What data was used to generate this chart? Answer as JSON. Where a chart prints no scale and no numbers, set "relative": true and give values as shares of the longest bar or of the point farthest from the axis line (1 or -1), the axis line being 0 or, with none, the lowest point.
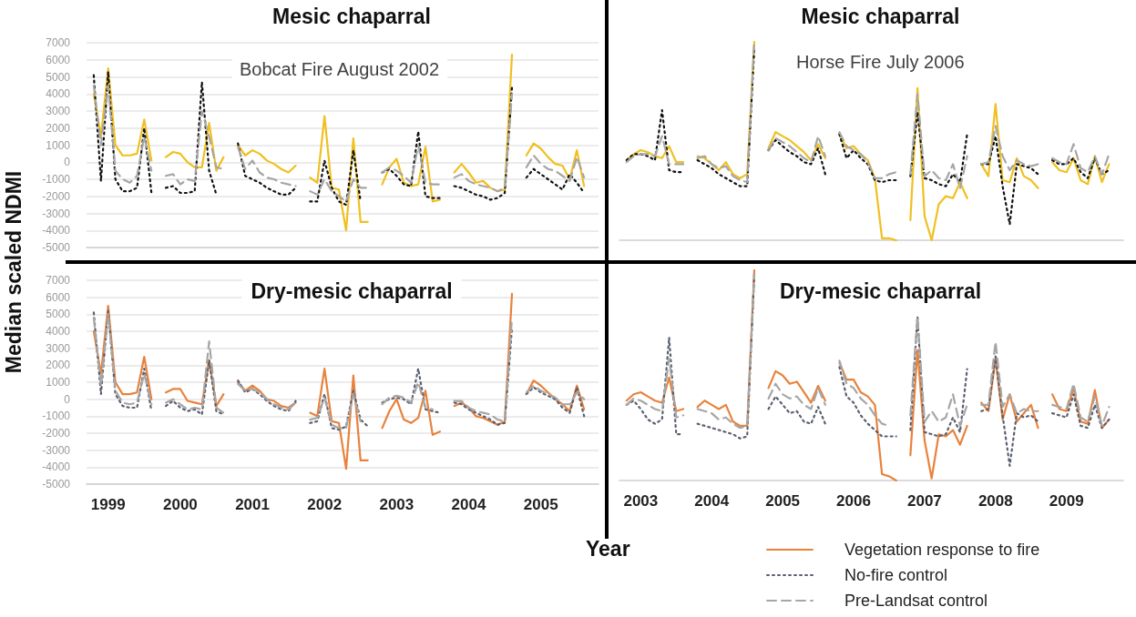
{
  "chart_data": [
    {
      "type": "line",
      "title": "Mesic chaparral",
      "annotations": [
        "Bobcat Fire August 2002"
      ],
      "xlim": [
        1998.7,
        2005.8
      ],
      "xticks": [
        1999,
        2000,
        2001,
        2002,
        2003,
        2004,
        2005
      ],
      "ylim": [
        -5000,
        7000
      ],
      "yticks": [
        -5000,
        -4000,
        -3000,
        -2000,
        -1000,
        0,
        1000,
        2000,
        3000,
        4000,
        5000,
        6000,
        7000
      ],
      "grid": "y",
      "tick_labels": "y",
      "marker": "none",
      "x": [
        1998.8,
        1998.9,
        1999,
        1999.1,
        1999.2,
        1999.3,
        1999.4,
        1999.5,
        1999.6,
        1999.7,
        1999.8,
        1999.9,
        2000,
        2000.1,
        2000.2,
        2000.3,
        2000.4,
        2000.5,
        2000.6,
        2000.7,
        2000.8,
        2000.9,
        2001,
        2001.1,
        2001.2,
        2001.3,
        2001.4,
        2001.5,
        2001.6,
        2001.7,
        2001.8,
        2001.9,
        2002,
        2002.1,
        2002.2,
        2002.3,
        2002.4,
        2002.5,
        2002.6,
        2002.7,
        2002.8,
        2002.9,
        2003,
        2003.1,
        2003.2,
        2003.3,
        2003.4,
        2003.5,
        2003.6,
        2003.7,
        2003.8,
        2003.9,
        2004,
        2004.1,
        2004.2,
        2004.3,
        2004.4,
        2004.5,
        2004.6,
        2004.7,
        2004.8,
        2004.9,
        2005,
        2005.1,
        2005.2,
        2005.3,
        2005.4,
        2005.5,
        2005.6
      ],
      "series": [
        {
          "color": "#f0c020",
          "line_style": "solid",
          "values": [
            4000,
            1500,
            5500,
            1000,
            400,
            400,
            500,
            2500,
            100,
            null,
            300,
            600,
            500,
            0,
            -300,
            -300,
            2300,
            -500,
            300,
            null,
            1000,
            400,
            700,
            500,
            100,
            -100,
            -400,
            -600,
            -200,
            null,
            -900,
            -1200,
            2700,
            -1500,
            -1600,
            -4000,
            1400,
            -3500,
            -3500,
            null,
            -1300,
            -300,
            200,
            -1200,
            -1400,
            -1300,
            900,
            -2300,
            -2200,
            null,
            -600,
            -100,
            -600,
            -1200,
            -1100,
            -1500,
            -1700,
            -1600,
            6300,
            null,
            400,
            1100,
            800,
            300,
            -100,
            -200,
            -1000,
            700,
            -1400
          ]
        },
        {
          "color": "#111111",
          "line_style": "dotted",
          "values": [
            5100,
            -1100,
            5300,
            -1000,
            -1700,
            -1700,
            -1500,
            2000,
            -1800,
            null,
            -1500,
            -1400,
            -1800,
            -1800,
            -1700,
            4700,
            -500,
            -1900,
            null,
            null,
            1100,
            -800,
            -1000,
            -1200,
            -1500,
            -1700,
            -1900,
            -1900,
            -1500,
            null,
            -2300,
            -2300,
            100,
            -1500,
            -2300,
            -2500,
            700,
            -2300,
            null,
            null,
            -600,
            -400,
            -800,
            -1300,
            -1400,
            1800,
            -2000,
            -2100,
            -2100,
            null,
            -1400,
            -1500,
            -1700,
            -1900,
            -2000,
            -2200,
            -2100,
            -1800,
            4400,
            null,
            -900,
            -400,
            -700,
            -1000,
            -1300,
            -1600,
            -700,
            -1200,
            -1800
          ]
        },
        {
          "color": "#a6a6a6",
          "line_style": "dashed",
          "values": [
            4500,
            1000,
            4500,
            -500,
            -1000,
            -1200,
            -800,
            1500,
            -500,
            null,
            -800,
            -700,
            -1300,
            -1000,
            -1100,
            3000,
            1500,
            -300,
            -400,
            null,
            900,
            -400,
            100,
            -600,
            -900,
            -1000,
            -1200,
            -1300,
            -1400,
            null,
            -1700,
            -1900,
            -1000,
            -1700,
            -2000,
            -2300,
            -1000,
            -1500,
            -1500,
            null,
            -600,
            -300,
            -500,
            -800,
            -1200,
            1000,
            -1200,
            -1300,
            -1300,
            null,
            -900,
            -700,
            -1100,
            -1300,
            -1400,
            -1500,
            -1700,
            -1500,
            4000,
            null,
            -300,
            400,
            -100,
            -400,
            -500,
            -800,
            -1100,
            300,
            -900
          ]
        }
      ]
    },
    {
      "type": "line",
      "title": "Mesic chaparral",
      "annotations": [
        "Horse Fire July 2006"
      ],
      "relative": true,
      "grid": "y",
      "tick_labels": false,
      "marker": "none",
      "x": [
        2002.8,
        2002.9,
        2003,
        2003.1,
        2003.2,
        2003.3,
        2003.4,
        2003.5,
        2003.6,
        2003.7,
        2003.8,
        2003.9,
        2004,
        2004.1,
        2004.2,
        2004.3,
        2004.4,
        2004.5,
        2004.6,
        2004.7,
        2004.8,
        2004.9,
        2005,
        2005.1,
        2005.2,
        2005.3,
        2005.4,
        2005.5,
        2005.6,
        2005.7,
        2005.8,
        2005.9,
        2006,
        2006.1,
        2006.2,
        2006.3,
        2006.4,
        2006.5,
        2006.6,
        2006.7,
        2006.8,
        2006.9,
        2007,
        2007.1,
        2007.2,
        2007.3,
        2007.4,
        2007.5,
        2007.6,
        2007.7,
        2007.8,
        2007.9,
        2008,
        2008.1,
        2008.2,
        2008.3,
        2008.4,
        2008.5,
        2008.6,
        2008.7,
        2008.8,
        2008.9,
        2009,
        2009.1,
        2009.2,
        2009.3,
        2009.4,
        2009.5,
        2009.6
      ],
      "series": [
        {
          "color": "#f0c020",
          "line_style": "solid",
          "values": [
            0.4,
            0.43,
            0.45,
            0.44,
            0.42,
            0.41,
            0.47,
            0.39,
            0.39,
            null,
            0.42,
            0.41,
            0.38,
            0.35,
            0.39,
            0.33,
            0.31,
            0.33,
            0.99,
            null,
            0.46,
            0.54,
            0.52,
            0.5,
            0.47,
            0.44,
            0.4,
            0.48,
            0.41,
            null,
            0.53,
            0.46,
            0.47,
            0.43,
            0.4,
            0.31,
            0.01,
            0.01,
            0,
            null,
            0.1,
            0.76,
            0.12,
            0,
            0.18,
            0.22,
            0.21,
            0.29,
            0.21,
            null,
            0.38,
            0.32,
            0.68,
            0.3,
            0.29,
            0.41,
            0.32,
            0.3,
            0.26,
            null,
            0.39,
            0.35,
            0.34,
            0.41,
            0.3,
            0.28,
            0.42,
            0.29,
            0.38
          ]
        },
        {
          "color": "#111111",
          "line_style": "dotted",
          "values": [
            0.4,
            0.43,
            0.43,
            0.42,
            0.4,
            0.65,
            0.35,
            0.34,
            0.34,
            null,
            0.4,
            0.38,
            0.36,
            0.33,
            0.31,
            0.29,
            0.27,
            0.27,
            0.96,
            null,
            0.45,
            0.5,
            0.47,
            0.44,
            0.42,
            0.39,
            0.38,
            0.46,
            0.33,
            null,
            0.53,
            0.41,
            0.45,
            0.41,
            0.38,
            0.3,
            0.29,
            0.3,
            0.3,
            null,
            0.32,
            0.64,
            0.31,
            0.3,
            0.28,
            0.27,
            0.33,
            0.29,
            0.53,
            null,
            0.38,
            0.38,
            0.52,
            0.27,
            0.08,
            0.38,
            0.37,
            0.36,
            0.33,
            null,
            0.4,
            0.38,
            0.38,
            0.41,
            0.34,
            0.31,
            0.41,
            0.33,
            0.35
          ]
        },
        {
          "color": "#a6a6a6",
          "line_style": "dashed",
          "values": [
            0.39,
            0.42,
            0.43,
            0.43,
            0.42,
            0.52,
            0.38,
            0.38,
            0.38,
            null,
            0.41,
            0.42,
            0.38,
            0.36,
            0.37,
            0.32,
            0.3,
            0.29,
            1,
            null,
            0.45,
            0.51,
            0.49,
            0.47,
            0.44,
            0.41,
            0.39,
            0.52,
            0.42,
            null,
            0.54,
            0.47,
            0.45,
            0.43,
            0.39,
            0.31,
            0.31,
            0.33,
            0.34,
            null,
            0.33,
            0.73,
            0.32,
            0.35,
            0.31,
            0.3,
            0.38,
            0.26,
            0.42,
            null,
            0.38,
            0.39,
            0.57,
            0.42,
            0.35,
            0.4,
            0.38,
            0.37,
            0.38,
            null,
            0.41,
            0.39,
            0.38,
            0.48,
            0.36,
            0.34,
            0.42,
            0.33,
            0.43
          ]
        }
      ]
    },
    {
      "type": "line",
      "title": "Dry-mesic chaparral",
      "ylabel": "Median scaled NDMI",
      "xlim": [
        1998.7,
        2005.8
      ],
      "xticks": [
        1999,
        2000,
        2001,
        2002,
        2003,
        2004,
        2005
      ],
      "ylim": [
        -5000,
        7000
      ],
      "yticks": [
        -5000,
        -4000,
        -3000,
        -2000,
        -1000,
        0,
        1000,
        2000,
        3000,
        4000,
        5000,
        6000,
        7000
      ],
      "grid": "y",
      "marker": "none",
      "x": [
        1998.8,
        1998.9,
        1999,
        1999.1,
        1999.2,
        1999.3,
        1999.4,
        1999.5,
        1999.6,
        1999.7,
        1999.8,
        1999.9,
        2000,
        2000.1,
        2000.2,
        2000.3,
        2000.4,
        2000.5,
        2000.6,
        2000.7,
        2000.8,
        2000.9,
        2001,
        2001.1,
        2001.2,
        2001.3,
        2001.4,
        2001.5,
        2001.6,
        2001.7,
        2001.8,
        2001.9,
        2002,
        2002.1,
        2002.2,
        2002.3,
        2002.4,
        2002.5,
        2002.6,
        2002.7,
        2002.8,
        2002.9,
        2003,
        2003.1,
        2003.2,
        2003.3,
        2003.4,
        2003.5,
        2003.6,
        2003.7,
        2003.8,
        2003.9,
        2004,
        2004.1,
        2004.2,
        2004.3,
        2004.4,
        2004.5,
        2004.6,
        2004.7,
        2004.8,
        2004.9,
        2005,
        2005.1,
        2005.2,
        2005.3,
        2005.4,
        2005.5,
        2005.6
      ],
      "series": [
        {
          "color": "#e8823c",
          "line_style": "solid",
          "values": [
            4000,
            1500,
            5500,
            1000,
            300,
            300,
            400,
            2500,
            0,
            null,
            400,
            600,
            600,
            -100,
            -200,
            -300,
            2300,
            -400,
            300,
            null,
            1000,
            500,
            800,
            500,
            0,
            -100,
            -400,
            -500,
            -200,
            null,
            -800,
            -1000,
            1800,
            -1300,
            -1400,
            -4100,
            1400,
            -3600,
            -3600,
            null,
            -1700,
            -700,
            0,
            -1200,
            -1400,
            -1100,
            500,
            -2100,
            -1900,
            null,
            -400,
            -200,
            -500,
            -1000,
            -1100,
            -1300,
            -1500,
            -1300,
            6200,
            null,
            300,
            1100,
            800,
            400,
            0,
            -300,
            -700,
            800,
            -600
          ]
        },
        {
          "color": "#5a6070",
          "line_style": "dotted",
          "values": [
            5100,
            300,
            5200,
            300,
            -400,
            -500,
            -500,
            1800,
            -700,
            null,
            -400,
            -100,
            -500,
            -700,
            -600,
            -900,
            2300,
            -700,
            -900,
            null,
            1100,
            400,
            600,
            300,
            -100,
            -400,
            -600,
            -700,
            -100,
            null,
            -1400,
            -1300,
            300,
            -1700,
            -1800,
            -1600,
            500,
            -1200,
            -1600,
            null,
            -200,
            0,
            100,
            0,
            -300,
            1800,
            -600,
            -700,
            -800,
            null,
            -200,
            -300,
            -600,
            -800,
            -1000,
            -1200,
            -1500,
            -1400,
            4200,
            null,
            300,
            700,
            400,
            200,
            0,
            -500,
            -800,
            700,
            -1000
          ]
        },
        {
          "color": "#a6a6a6",
          "line_style": "dashed",
          "values": [
            4800,
            800,
            5000,
            500,
            -200,
            -300,
            -200,
            1500,
            -300,
            null,
            -200,
            0,
            -300,
            -600,
            -500,
            -600,
            3400,
            -500,
            -800,
            null,
            900,
            500,
            600,
            400,
            0,
            -300,
            -500,
            -600,
            -200,
            null,
            -1200,
            -1100,
            100,
            -1500,
            -1700,
            -1700,
            300,
            -1300,
            null,
            null,
            -300,
            100,
            200,
            100,
            -200,
            1000,
            -500,
            -600,
            null,
            null,
            -100,
            -100,
            -500,
            -700,
            -800,
            -900,
            -1200,
            -1300,
            4800,
            null,
            400,
            800,
            500,
            300,
            100,
            -300,
            -300,
            400,
            0
          ]
        }
      ]
    },
    {
      "type": "line",
      "title": "Dry-mesic chaparral",
      "xlabel": "Year",
      "xlim": [
        2002.7,
        2009.8
      ],
      "xticks": [
        2003,
        2004,
        2005,
        2006,
        2007,
        2008,
        2009
      ],
      "relative": true,
      "grid": "y",
      "tick_labels": "x",
      "marker": "none",
      "legend": "bottom",
      "x": [
        2002.8,
        2002.9,
        2003,
        2003.1,
        2003.2,
        2003.3,
        2003.4,
        2003.5,
        2003.6,
        2003.7,
        2003.8,
        2003.9,
        2004,
        2004.1,
        2004.2,
        2004.3,
        2004.4,
        2004.5,
        2004.6,
        2004.7,
        2004.8,
        2004.9,
        2005,
        2005.1,
        2005.2,
        2005.3,
        2005.4,
        2005.5,
        2005.6,
        2005.7,
        2005.8,
        2005.9,
        2006,
        2006.1,
        2006.2,
        2006.3,
        2006.4,
        2006.5,
        2006.6,
        2006.7,
        2006.8,
        2006.9,
        2007,
        2007.1,
        2007.2,
        2007.3,
        2007.4,
        2007.5,
        2007.6,
        2007.7,
        2007.8,
        2007.9,
        2008,
        2008.1,
        2008.2,
        2008.3,
        2008.4,
        2008.5,
        2008.6,
        2008.7,
        2008.8,
        2008.9,
        2009,
        2009.1,
        2009.2,
        2009.3,
        2009.4,
        2009.5,
        2009.6
      ],
      "series": [
        {
          "name": "Vegetation response to fire",
          "color": "#e8823c",
          "line_style": "solid",
          "values": [
            0.38,
            0.41,
            0.42,
            0.4,
            0.38,
            0.37,
            0.49,
            0.33,
            0.34,
            null,
            0.35,
            0.38,
            0.36,
            0.34,
            0.36,
            0.28,
            0.26,
            0.26,
            1,
            null,
            0.44,
            0.52,
            0.5,
            0.46,
            0.47,
            0.42,
            0.37,
            0.45,
            0.38,
            null,
            0.56,
            0.48,
            0.48,
            0.42,
            0.4,
            0.36,
            0.03,
            0.02,
            0,
            null,
            0.12,
            0.62,
            0.19,
            0.01,
            0.22,
            0.21,
            0.24,
            0.17,
            0.26,
            null,
            0.37,
            0.33,
            0.58,
            0.29,
            0.41,
            0.28,
            0.32,
            0.36,
            0.25,
            null,
            0.41,
            0.34,
            0.33,
            0.44,
            0.28,
            0.27,
            0.43,
            0.25,
            0.29
          ]
        },
        {
          "name": "No-fire control",
          "color": "#5a6070",
          "line_style": "dotted",
          "values": [
            0.36,
            0.38,
            0.34,
            0.29,
            0.27,
            0.29,
            0.68,
            0.22,
            0.22,
            null,
            0.27,
            0.26,
            0.25,
            0.24,
            0.23,
            0.22,
            0.2,
            0.21,
            0.98,
            null,
            0.34,
            0.4,
            0.36,
            0.32,
            0.33,
            0.28,
            0.27,
            0.35,
            0.27,
            null,
            0.54,
            0.4,
            0.37,
            0.31,
            0.27,
            0.24,
            0.21,
            0.21,
            0.21,
            null,
            0.24,
            0.78,
            0.23,
            0.22,
            0.21,
            0.22,
            0.3,
            0.23,
            0.53,
            null,
            0.33,
            0.34,
            0.59,
            0.31,
            0.07,
            0.32,
            0.3,
            0.31,
            0.28,
            null,
            0.32,
            0.31,
            0.3,
            0.41,
            0.26,
            0.25,
            0.36,
            0.25,
            0.29
          ]
        },
        {
          "name": "Pre-Landsat control",
          "color": "#a6a6a6",
          "line_style": "dashed",
          "values": [
            0.36,
            0.39,
            0.38,
            0.36,
            0.34,
            0.33,
            0.58,
            0.3,
            0.31,
            null,
            0.34,
            0.33,
            0.32,
            0.29,
            0.3,
            0.27,
            0.25,
            0.26,
            0.98,
            null,
            0.39,
            0.46,
            0.41,
            0.39,
            0.4,
            0.36,
            0.34,
            0.44,
            0.36,
            null,
            0.57,
            0.46,
            0.44,
            0.39,
            0.36,
            0.31,
            0.27,
            0.26,
            null,
            null,
            0.31,
            0.78,
            0.28,
            0.33,
            0.28,
            0.3,
            0.41,
            0.26,
            0.36,
            null,
            0.36,
            0.36,
            0.66,
            0.35,
            0.41,
            0.32,
            0.34,
            0.33,
            0.33,
            null,
            0.36,
            0.35,
            0.34,
            0.46,
            0.3,
            0.28,
            0.4,
            0.26,
            0.35
          ]
        }
      ]
    }
  ]
}
